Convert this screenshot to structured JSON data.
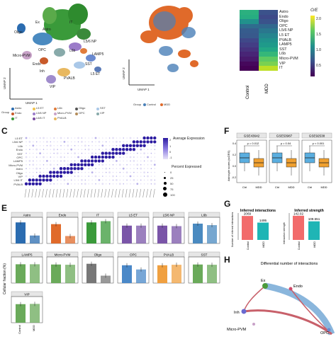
{
  "panel_labels": [
    "C",
    "F",
    "E",
    "G",
    "H"
  ],
  "panelA": {
    "xlabel": "UMAP 1",
    "ylabel": "UMAP 2",
    "cluster_labels": [
      "Oligo",
      "Astro",
      "Ex",
      "IT",
      "L5/6 NP",
      "L6b",
      "Micro-PVM",
      "OPC",
      "Endo",
      "LAMP5",
      "SST",
      "PVALB",
      "L5 ET",
      "Inh",
      "VIP"
    ],
    "legend_title": "Group",
    "legend_items": [
      {
        "label": "Astro",
        "color": "#2b6cb0"
      },
      {
        "label": "L5 ET",
        "color": "#f0c24b"
      },
      {
        "label": "L6b",
        "color": "#e07c3c"
      },
      {
        "label": "Oligo",
        "color": "#555555"
      },
      {
        "label": "SST",
        "color": "#aac8e8"
      },
      {
        "label": "Endo",
        "color": "#c85a2a"
      },
      {
        "label": "L5/6 NP",
        "color": "#9b7cc9"
      },
      {
        "label": "Micro-PVM",
        "color": "#c8a2c8"
      },
      {
        "label": "OPC",
        "color": "#b48c5a"
      },
      {
        "label": "VIP",
        "color": "#88aaaa"
      },
      {
        "label": "IT",
        "color": "#3a9a3a"
      },
      {
        "label": "L6/6 IT",
        "color": "#7a4aa0"
      },
      {
        "label": "PVALB",
        "color": "#e8b860"
      }
    ]
  },
  "panelB": {
    "xlabel": "UMAP 1",
    "ylabel": "UMAP 2",
    "legend_title": "Group",
    "legend_items": [
      {
        "label": "Control",
        "color": "#4a80b8"
      },
      {
        "label": "MDD",
        "color": "#e06a2a"
      }
    ]
  },
  "heatmap": {
    "legend_title": "O/E",
    "legend_ticks": [
      "2.0",
      "1.5",
      "1.0",
      "0.5"
    ],
    "columns": [
      "Control",
      "MDD"
    ],
    "rows": [
      "Astro",
      "Endo",
      "Oligo",
      "OPC",
      "L5/6 NP",
      "L5 ET",
      "PVALB",
      "LAMP5",
      "SST",
      "L6b",
      "Micro-PVM",
      "VIP",
      "IT"
    ],
    "cells": [
      [
        "#2bb07f",
        "#3b528b"
      ],
      [
        "#27ad81",
        "#3e4a89"
      ],
      [
        "#21918c",
        "#3a538b"
      ],
      [
        "#2f6c8e",
        "#31688e"
      ],
      [
        "#365c8d",
        "#2a778e"
      ],
      [
        "#38598c",
        "#25858e"
      ],
      [
        "#3f4889",
        "#20928c"
      ],
      [
        "#433e85",
        "#1f9a8a"
      ],
      [
        "#46327e",
        "#22a785"
      ],
      [
        "#482576",
        "#35b779"
      ],
      [
        "#481a6c",
        "#5ec962"
      ],
      [
        "#46085c",
        "#7ad151"
      ],
      [
        "#440154",
        "#bddf26"
      ]
    ]
  },
  "panelC": {
    "rows": [
      "L5 ET",
      "L5/6 NP",
      "L6b",
      "Endo",
      "SST",
      "OPC",
      "LAMP5",
      "Micro-PVM",
      "Astro",
      "Oligo",
      "VIP",
      "L5/6 IT",
      "PVALB"
    ],
    "legend_title_expr": "Average Expression",
    "legend_ticks_expr": [
      "2",
      "1",
      "0",
      "-1"
    ],
    "legend_title_pct": "Percent Expressed",
    "legend_ticks_pct": [
      "0",
      "25",
      "50",
      "75",
      "100"
    ]
  },
  "panelF": {
    "ylabel": "Astrocyte scores (scDRS)",
    "facets": [
      {
        "title": "GSE43642",
        "pvalue": "p = 0.012",
        "ticks": [
          "0.4",
          "0.2",
          "0.0",
          "-0.2"
        ]
      },
      {
        "title": "GSE53987",
        "pvalue": "p = 0.04",
        "ticks": [
          "0.4",
          "0.2",
          "0.0",
          "-0.2"
        ]
      },
      {
        "title": "GSE92538",
        "pvalue": "p < 0.001",
        "ticks": [
          "0.4",
          "0.2",
          "0.0",
          "-0.2"
        ]
      }
    ],
    "categories": [
      "Ctrl",
      "MDD"
    ],
    "colors": {
      "Ctrl": "#5aaee0",
      "MDD": "#f0a030"
    }
  },
  "panelE": {
    "ylabel": "Cellular fraction (%)",
    "xcats": [
      "Control",
      "MDD"
    ],
    "facets": [
      {
        "name": "Astro",
        "color": "#2b6cb0",
        "values": [
          0.85,
          0.32
        ]
      },
      {
        "name": "Endo",
        "color": "#e06a2a",
        "values": [
          0.78,
          0.3
        ]
      },
      {
        "name": "IT",
        "color": "#3a9a3a",
        "values": [
          0.85,
          0.9
        ]
      },
      {
        "name": "L5 ET",
        "color": "#7a55a8",
        "values": [
          0.72,
          0.72
        ]
      },
      {
        "name": "L5/6 NP",
        "color": "#7a55a8",
        "values": [
          0.72,
          0.7
        ]
      },
      {
        "name": "L6b",
        "color": "#4a8ac0",
        "values": [
          0.8,
          0.74
        ]
      },
      {
        "name": "LAMP5",
        "color": "#6aaa5a",
        "values": [
          0.76,
          0.76
        ]
      },
      {
        "name": "Micro-PVM",
        "color": "#6aaa5a",
        "values": [
          0.75,
          0.74
        ]
      },
      {
        "name": "Oligo",
        "color": "#777777",
        "values": [
          0.78,
          0.3
        ]
      },
      {
        "name": "OPC",
        "color": "#4a88c8",
        "values": [
          0.72,
          0.55
        ]
      },
      {
        "name": "PVALB",
        "color": "#f0a040",
        "values": [
          0.72,
          0.74
        ]
      },
      {
        "name": "SST",
        "color": "#6aaa5a",
        "values": [
          0.75,
          0.74
        ]
      },
      {
        "name": "VIP",
        "color": "#6aaa5a",
        "values": [
          0.75,
          0.76
        ]
      }
    ]
  },
  "chart_data": [
    {
      "type": "bar",
      "title": "Inferred interactions",
      "ylabel": "Number of inferred interactions",
      "categories": [
        "Control",
        "MDD"
      ],
      "values": [
        2069,
        1495
      ],
      "colors": [
        "#f26b6b",
        "#1fb5b5"
      ],
      "ylim": [
        0,
        2200
      ]
    },
    {
      "type": "bar",
      "title": "Inferred strength",
      "ylabel": "Interaction strength",
      "categories": [
        "Control",
        "MDD"
      ],
      "values": [
        142.02,
        109.551
      ],
      "colors": [
        "#f26b6b",
        "#1fb5b5"
      ],
      "ylim": [
        0,
        150
      ]
    }
  ],
  "panelG": {
    "labels": [
      "2069",
      "1495",
      "142.02",
      "109.551"
    ]
  },
  "panelH": {
    "title": "Differential number of interactions",
    "nodes": [
      "Ex",
      "Endo",
      "Inh",
      "Micro-PVM",
      "OPC"
    ]
  }
}
